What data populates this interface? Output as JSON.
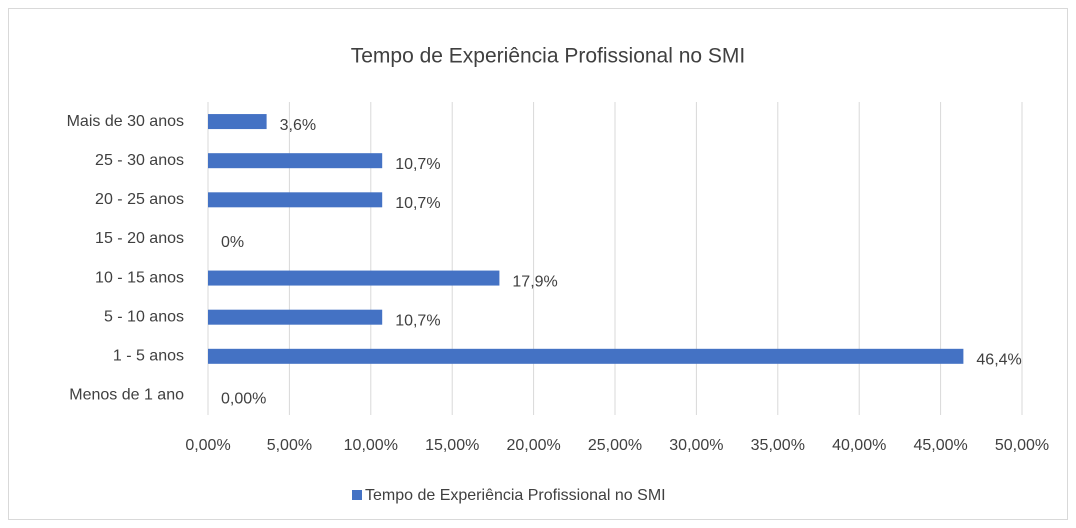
{
  "chart_data": {
    "type": "bar",
    "orientation": "horizontal",
    "title": "Tempo de Experiência Profissional no SMI",
    "categories": [
      "Menos de 1 ano",
      "1 - 5 anos",
      "5 - 10 anos",
      "10 - 15 anos",
      "15 - 20 anos",
      "20 - 25 anos",
      "25 - 30 anos",
      "Mais de 30 anos"
    ],
    "series": [
      {
        "name": "Tempo de Experiência Profissional no SMI",
        "color": "#4472c4",
        "values": [
          0,
          46.4,
          10.7,
          17.9,
          0,
          10.7,
          10.7,
          3.6
        ],
        "value_labels": [
          "0,00%",
          "46,4%",
          "10,7%",
          "17,9%",
          "0%",
          "10,7%",
          "10,7%",
          "3,6%"
        ]
      }
    ],
    "xlim": [
      0,
      50
    ],
    "xticks": [
      {
        "value": 0,
        "label": "0,00%"
      },
      {
        "value": 5,
        "label": "5,00%"
      },
      {
        "value": 10,
        "label": "10,00%"
      },
      {
        "value": 15,
        "label": "15,00%"
      },
      {
        "value": 20,
        "label": "20,00%"
      },
      {
        "value": 25,
        "label": "25,00%"
      },
      {
        "value": 30,
        "label": "30,00%"
      },
      {
        "value": 35,
        "label": "35,00%"
      },
      {
        "value": 40,
        "label": "40,00%"
      },
      {
        "value": 45,
        "label": "45,00%"
      },
      {
        "value": 50,
        "label": "50,00%"
      }
    ],
    "grid": true,
    "legend": "bottom"
  }
}
